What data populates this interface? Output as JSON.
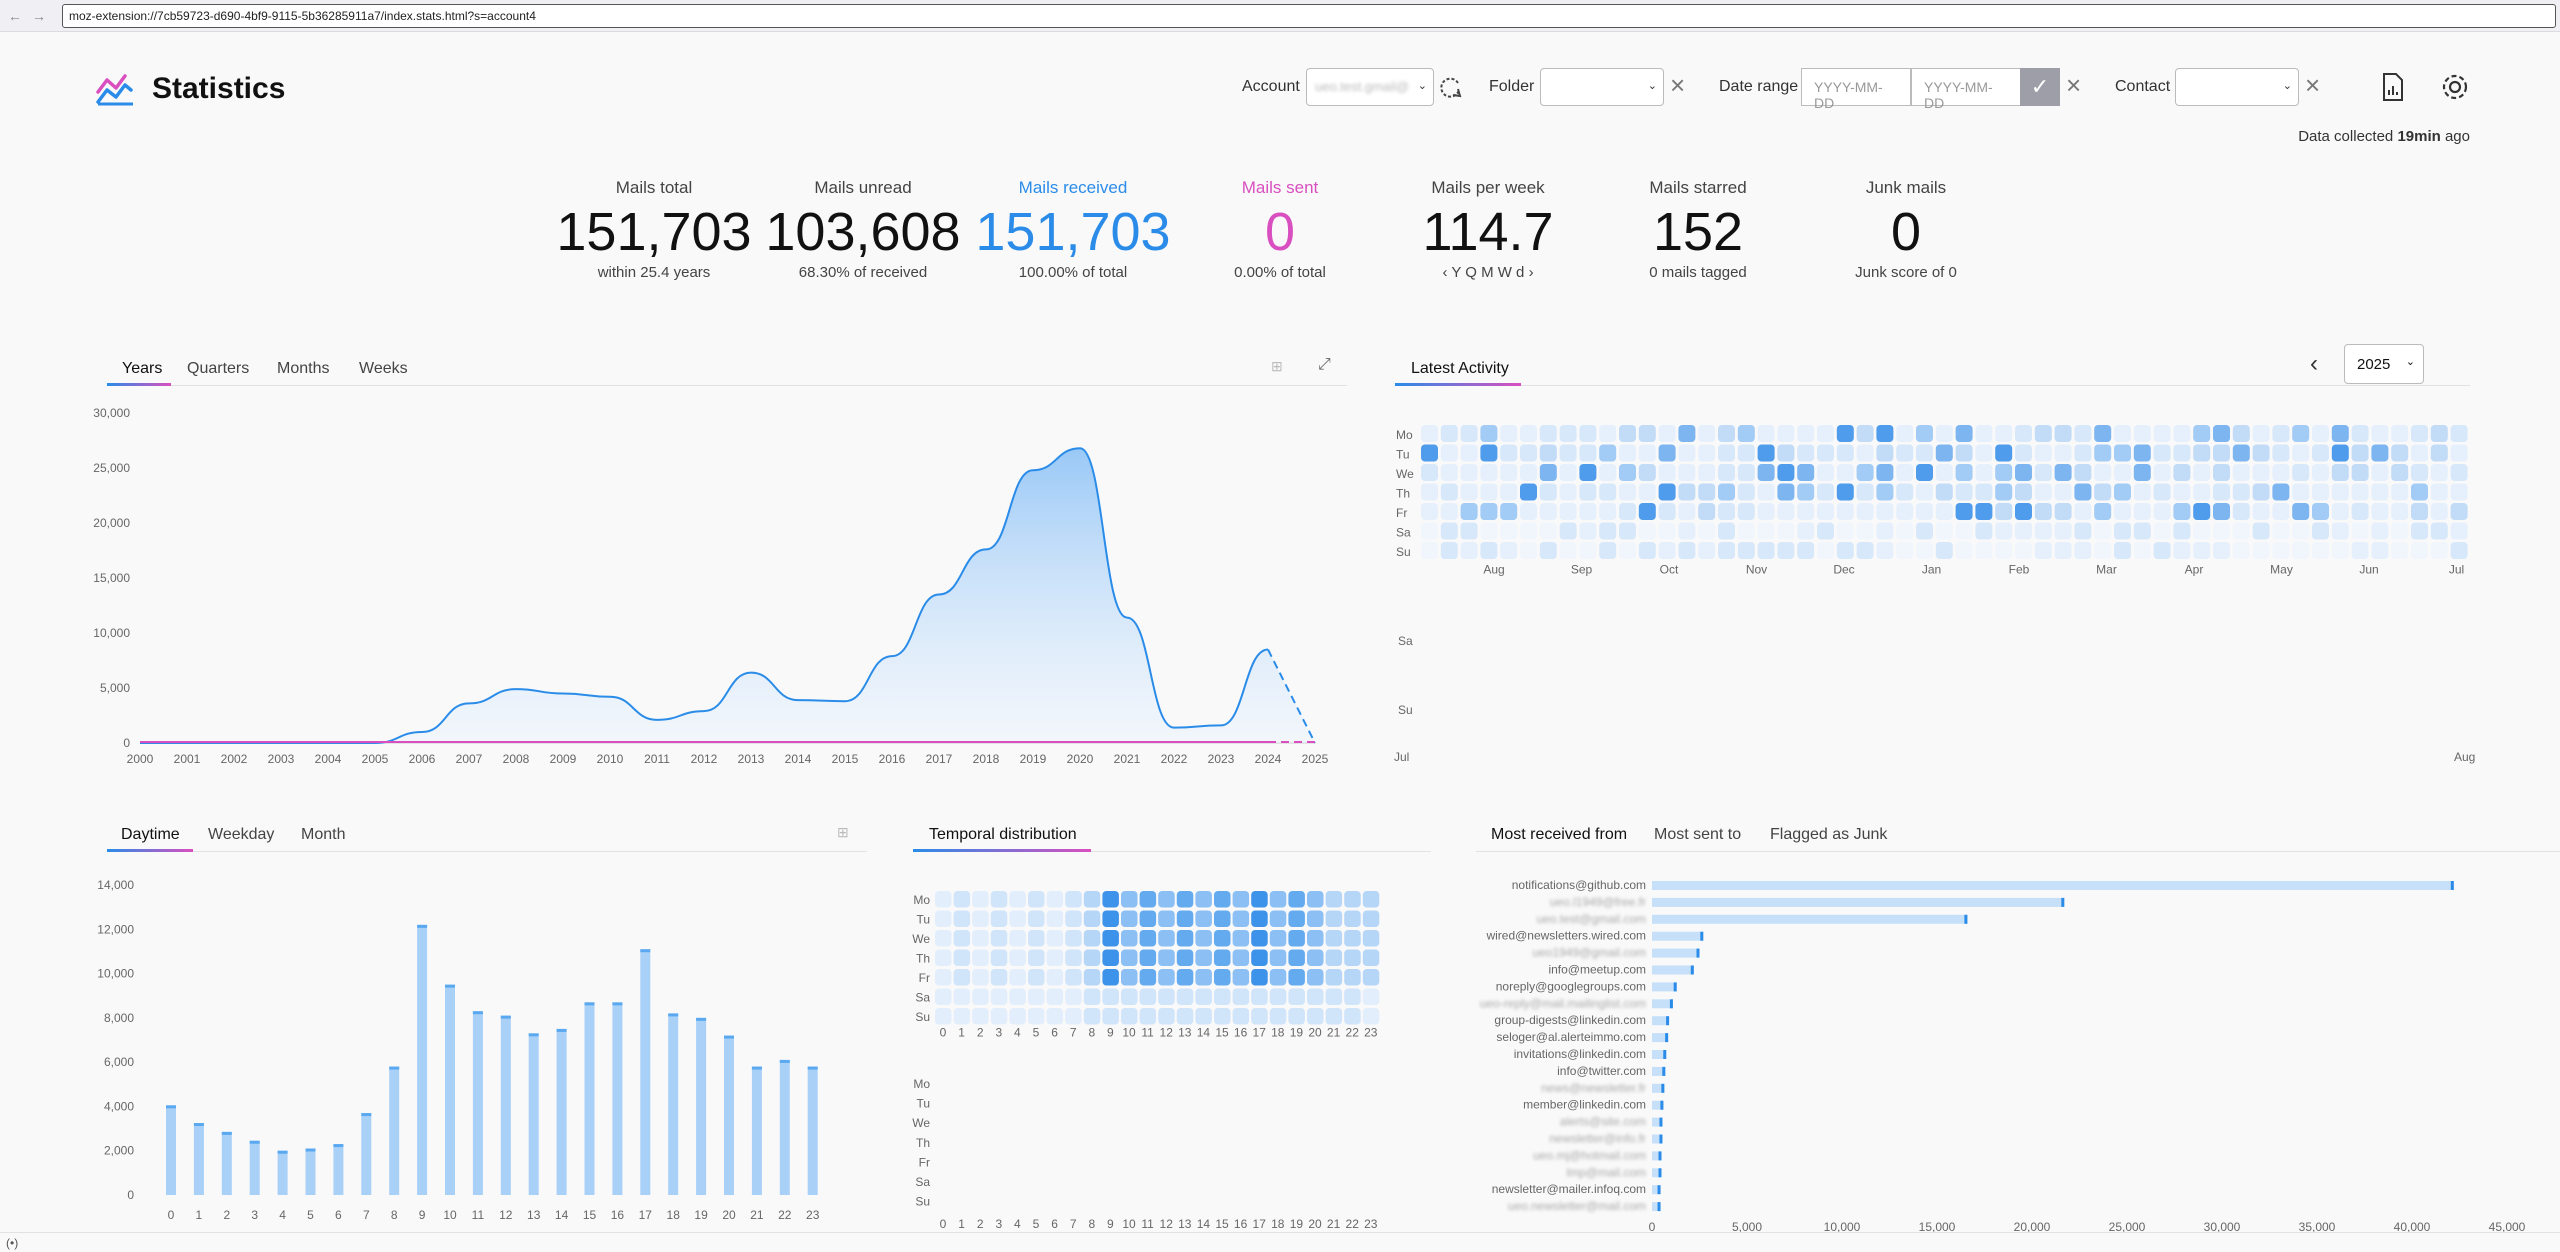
{
  "browser": {
    "url": "moz-extension://7cb59723-d690-4bf9-9115-5b36285911a7/index.stats.html?s=account4",
    "back_icon": "arrow-left-icon",
    "forward_icon": "arrow-right-icon",
    "status_icon": "broadcast-icon",
    "status_text": "(•)"
  },
  "header": {
    "title": "Statistics",
    "account_label": "Account",
    "account_value": "ueo.test.gmail@",
    "folder_label": "Folder",
    "date_range_label": "Date range",
    "date_from_placeholder": "YYYY-MM-DD",
    "date_to_placeholder": "YYYY-MM-DD",
    "contact_label": "Contact",
    "collected_prefix": "Data collected",
    "collected_time": "19min",
    "collected_suffix": "ago"
  },
  "stats": [
    {
      "label": "Mails total",
      "value": "151,703",
      "sub": "within 25.4 years",
      "color": "#111111"
    },
    {
      "label": "Mails unread",
      "value": "103,608",
      "sub": "68.30% of received",
      "color": "#111111"
    },
    {
      "label": "Mails received",
      "value": "151,703",
      "sub": "100.00% of total",
      "color": "#2a8ce8"
    },
    {
      "label": "Mails sent",
      "value": "0",
      "sub": "0.00% of total",
      "color": "#d94fbf"
    },
    {
      "label": "Mails per week",
      "value": "114.7",
      "sub": "‹  Y Q M W d  ›",
      "color": "#111111"
    },
    {
      "label": "Mails starred",
      "value": "152",
      "sub": "0 mails tagged",
      "color": "#111111"
    },
    {
      "label": "Junk mails",
      "value": "0",
      "sub": "Junk score of 0",
      "color": "#111111"
    }
  ],
  "years_tabs": [
    "Years",
    "Quarters",
    "Months",
    "Weeks"
  ],
  "activity_tab": "Latest Activity",
  "activity_year": "2025",
  "day_tabs": [
    "Daytime",
    "Weekday",
    "Month"
  ],
  "temporal_tab": "Temporal distribution",
  "contact_tabs": [
    "Most received from",
    "Most sent to",
    "Flagged as Junk"
  ],
  "weekdays": [
    "Mo",
    "Tu",
    "We",
    "Th",
    "Fr",
    "Sa",
    "Su"
  ],
  "activity_months": [
    "Aug",
    "Sep",
    "Oct",
    "Nov",
    "Dec",
    "Jan",
    "Feb",
    "Mar",
    "Apr",
    "May",
    "Jun",
    "Jul"
  ],
  "activity_extra": {
    "sa": "Sa",
    "su": "Su",
    "jul": "Jul",
    "aug": "Aug"
  },
  "colors": {
    "received": "#2a8ce8",
    "sent": "#d94fbf",
    "bar": "#a9d0f7",
    "bar_top": "#5aa9f0"
  },
  "chart_data": [
    {
      "type": "area",
      "title": "",
      "x": [
        "2000",
        "2001",
        "2002",
        "2003",
        "2004",
        "2005",
        "2006",
        "2007",
        "2008",
        "2009",
        "2010",
        "2011",
        "2012",
        "2013",
        "2014",
        "2015",
        "2016",
        "2017",
        "2018",
        "2019",
        "2020",
        "2021",
        "2022",
        "2023",
        "2024",
        "2025"
      ],
      "series": [
        {
          "name": "",
          "values": [
            0,
            0,
            0,
            0,
            0,
            0,
            1000,
            3600,
            4900,
            4500,
            4200,
            2100,
            2900,
            6400,
            3900,
            3800,
            7900,
            13500,
            17600,
            24800,
            26800,
            11400,
            1400,
            1600,
            8500,
            0
          ]
        }
      ],
      "ylim": [
        0,
        30000
      ],
      "yticks": [
        "0",
        "5,000",
        "10,000",
        "15,000",
        "20,000",
        "25,000",
        "30,000"
      ]
    },
    {
      "type": "bar",
      "title": "",
      "categories": [
        "0",
        "1",
        "2",
        "3",
        "4",
        "5",
        "6",
        "7",
        "8",
        "9",
        "10",
        "11",
        "12",
        "13",
        "14",
        "15",
        "16",
        "17",
        "18",
        "19",
        "20",
        "21",
        "22",
        "23"
      ],
      "values": [
        4050,
        3250,
        2850,
        2450,
        2000,
        2100,
        2300,
        3700,
        5800,
        12200,
        9500,
        8300,
        8100,
        7300,
        7500,
        8700,
        8700,
        11100,
        8200,
        8000,
        7200,
        5800,
        6100,
        5800
      ],
      "ylim": [
        0,
        14000
      ],
      "yticks": [
        "0",
        "2,000",
        "4,000",
        "6,000",
        "8,000",
        "10,000",
        "12,000",
        "14,000"
      ]
    },
    {
      "type": "bar",
      "title": "",
      "orientation": "horizontal",
      "categories": [
        "notifications@github.com",
        "ueo.l1949@free.fr",
        "ueo.test@gmail.com",
        "wired@newsletters.wired.com",
        "ueo1949@gmail.com",
        "info@meetup.com",
        "noreply@googlegroups.com",
        "ueo-reply@mail.mailinglist.com",
        "group-digests@linkedin.com",
        "seloger@al.alerteimmo.com",
        "invitations@linkedin.com",
        "info@twitter.com",
        "news@newsletter.fr",
        "member@linkedin.com",
        "alerts@site.com",
        "newsletter@info.fr",
        "ueo.mj@hotmail.com",
        "lmp@mail.com",
        "newsletter@mailer.infoq.com",
        "ueo.newsletter@mail.com"
      ],
      "values": [
        42200,
        21700,
        16600,
        2700,
        2500,
        2200,
        1300,
        1100,
        900,
        850,
        750,
        700,
        650,
        600,
        550,
        550,
        500,
        500,
        450,
        450
      ],
      "xlim": [
        0,
        45000
      ],
      "xticks": [
        "0",
        "5,000",
        "10,000",
        "15,000",
        "20,000",
        "25,000",
        "30,000",
        "35,000",
        "40,000",
        "45,000"
      ]
    },
    {
      "type": "heatmap",
      "title": "",
      "x": [
        "0",
        "1",
        "2",
        "3",
        "4",
        "5",
        "6",
        "7",
        "8",
        "9",
        "10",
        "11",
        "12",
        "13",
        "14",
        "15",
        "16",
        "17",
        "18",
        "19",
        "20",
        "21",
        "22",
        "23"
      ],
      "y": [
        "Mo",
        "Tu",
        "We",
        "Th",
        "Fr",
        "Sa",
        "Su"
      ]
    }
  ]
}
